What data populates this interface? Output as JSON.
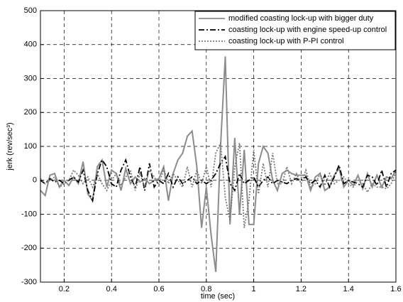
{
  "chart_data": {
    "type": "line",
    "xlabel": "time (sec)",
    "ylabel": "jerk (rev/sec³)",
    "xlim": [
      0.1,
      1.6
    ],
    "ylim": [
      -300,
      500
    ],
    "xticks": [
      0.2,
      0.4,
      0.6,
      0.8,
      1,
      1.2,
      1.4,
      1.6
    ],
    "yticks": [
      -300,
      -200,
      -100,
      0,
      100,
      200,
      300,
      400,
      500
    ],
    "grid": true,
    "legend": "northeast",
    "x": [
      0.1,
      0.12,
      0.14,
      0.16,
      0.18,
      0.2,
      0.22,
      0.24,
      0.26,
      0.28,
      0.3,
      0.32,
      0.34,
      0.36,
      0.38,
      0.4,
      0.42,
      0.44,
      0.46,
      0.48,
      0.5,
      0.52,
      0.54,
      0.56,
      0.58,
      0.6,
      0.62,
      0.64,
      0.66,
      0.68,
      0.7,
      0.72,
      0.74,
      0.76,
      0.78,
      0.8,
      0.82,
      0.84,
      0.86,
      0.88,
      0.9,
      0.92,
      0.94,
      0.96,
      0.98,
      1,
      1.02,
      1.04,
      1.06,
      1.08,
      1.1,
      1.12,
      1.14,
      1.16,
      1.18,
      1.2,
      1.22,
      1.24,
      1.26,
      1.28,
      1.3,
      1.32,
      1.34,
      1.36,
      1.38,
      1.4,
      1.42,
      1.44,
      1.46,
      1.48,
      1.5,
      1.52,
      1.54,
      1.56,
      1.58,
      1.6
    ],
    "series": [
      {
        "name": "modified coasting lock-up with bigger duty",
        "color": "#8c8c8c",
        "linestyle": "solid",
        "values": [
          -30,
          -45,
          15,
          20,
          -20,
          0,
          -15,
          10,
          -10,
          55,
          -40,
          -60,
          40,
          60,
          -20,
          30,
          20,
          -30,
          35,
          -10,
          10,
          -5,
          5,
          -10,
          0,
          5,
          40,
          -60,
          20,
          60,
          80,
          130,
          145,
          40,
          -140,
          -20,
          -160,
          -270,
          100,
          365,
          -130,
          125,
          -100,
          90,
          -130,
          -130,
          50,
          100,
          80,
          0,
          -30,
          20,
          30,
          20,
          15,
          15,
          15,
          -30,
          10,
          20,
          -30,
          -20,
          15,
          35,
          -20,
          0,
          -15,
          15,
          -25,
          20,
          -20,
          15,
          -20,
          10,
          5,
          30
        ]
      },
      {
        "name": "coasting lock-up with engine speed-up control",
        "color": "#000000",
        "linestyle": "dashdot",
        "values": [
          0,
          -10,
          5,
          -5,
          0,
          -10,
          0,
          10,
          -5,
          30,
          -30,
          -60,
          20,
          60,
          40,
          -10,
          -20,
          30,
          60,
          10,
          -20,
          40,
          -30,
          50,
          -20,
          0,
          -10,
          20,
          -20,
          10,
          -10,
          0,
          10,
          -10,
          0,
          -10,
          0,
          20,
          50,
          70,
          -10,
          -30,
          20,
          -10,
          0,
          10,
          -20,
          0,
          10,
          -10,
          0,
          -5,
          -10,
          0,
          5,
          0,
          10,
          -10,
          0,
          -20,
          15,
          -20,
          10,
          45,
          -10,
          0,
          -5,
          -10,
          -20,
          15,
          10,
          -15,
          30,
          -20,
          20,
          30
        ]
      },
      {
        "name": "coasting lock-up with P-PI control",
        "color": "#7a7a7a",
        "linestyle": "dotted",
        "values": [
          5,
          -10,
          0,
          10,
          -20,
          -10,
          0,
          30,
          15,
          -10,
          10,
          -20,
          20,
          -10,
          -30,
          0,
          20,
          -15,
          10,
          30,
          -30,
          20,
          -20,
          30,
          10,
          -15,
          35,
          -10,
          20,
          0,
          -20,
          40,
          -20,
          30,
          -10,
          40,
          -20,
          80,
          110,
          -50,
          -120,
          40,
          110,
          -140,
          -60,
          90,
          -40,
          50,
          -20,
          80,
          -10,
          -10,
          40,
          -10,
          20,
          -10,
          30,
          -20,
          -10,
          20,
          -15,
          20,
          -10,
          0,
          10,
          -10,
          -20,
          0,
          -10,
          -35,
          -10,
          -20,
          -20,
          -25,
          -10,
          25
        ]
      }
    ]
  }
}
